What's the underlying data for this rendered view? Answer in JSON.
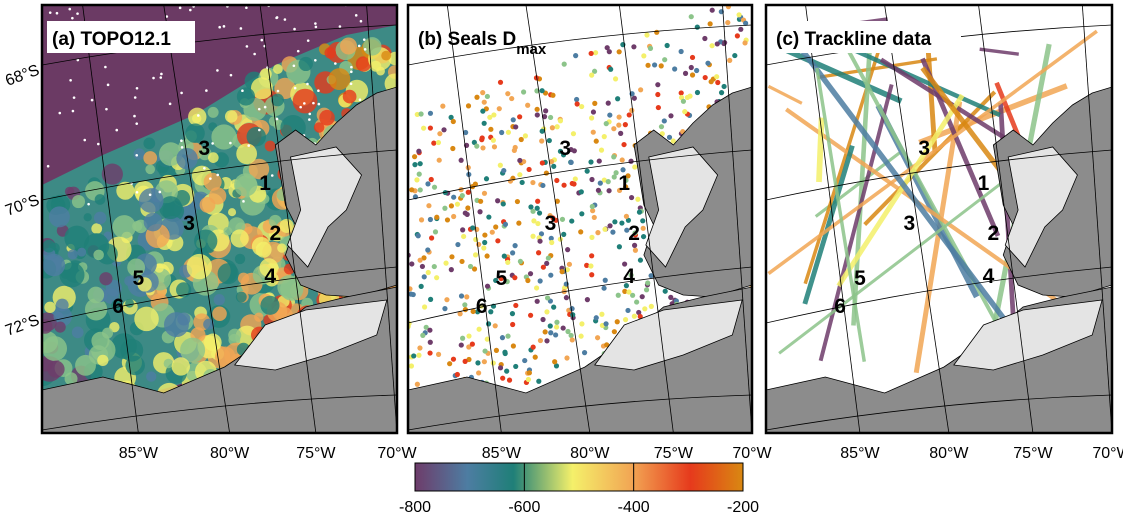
{
  "panels": [
    {
      "title": "(a) TOPO12.1",
      "region_labels": [
        "3",
        "1",
        "3",
        "2",
        "5",
        "4",
        "6"
      ],
      "latitude_labels": [
        "68°S",
        "70°S",
        "72°S"
      ],
      "longitude_labels": [
        "85°W",
        "80°W",
        "75°W",
        "70°W"
      ]
    },
    {
      "title": "(b) Seals D",
      "title_sub": "max",
      "region_labels": [
        "3",
        "1",
        "3",
        "2",
        "5",
        "4",
        "6"
      ],
      "longitude_labels": [
        "85°W",
        "80°W",
        "75°W",
        "70°W"
      ]
    },
    {
      "title": "(c) Trackline data",
      "region_labels": [
        "3",
        "1",
        "3",
        "2",
        "5",
        "4",
        "6"
      ],
      "longitude_labels": [
        "85°W",
        "80°W",
        "75°W",
        "70°W"
      ]
    }
  ],
  "colorbar": {
    "lim": [
      -800,
      -200
    ],
    "ticks": [
      -800,
      -600,
      -400,
      -200
    ]
  }
}
